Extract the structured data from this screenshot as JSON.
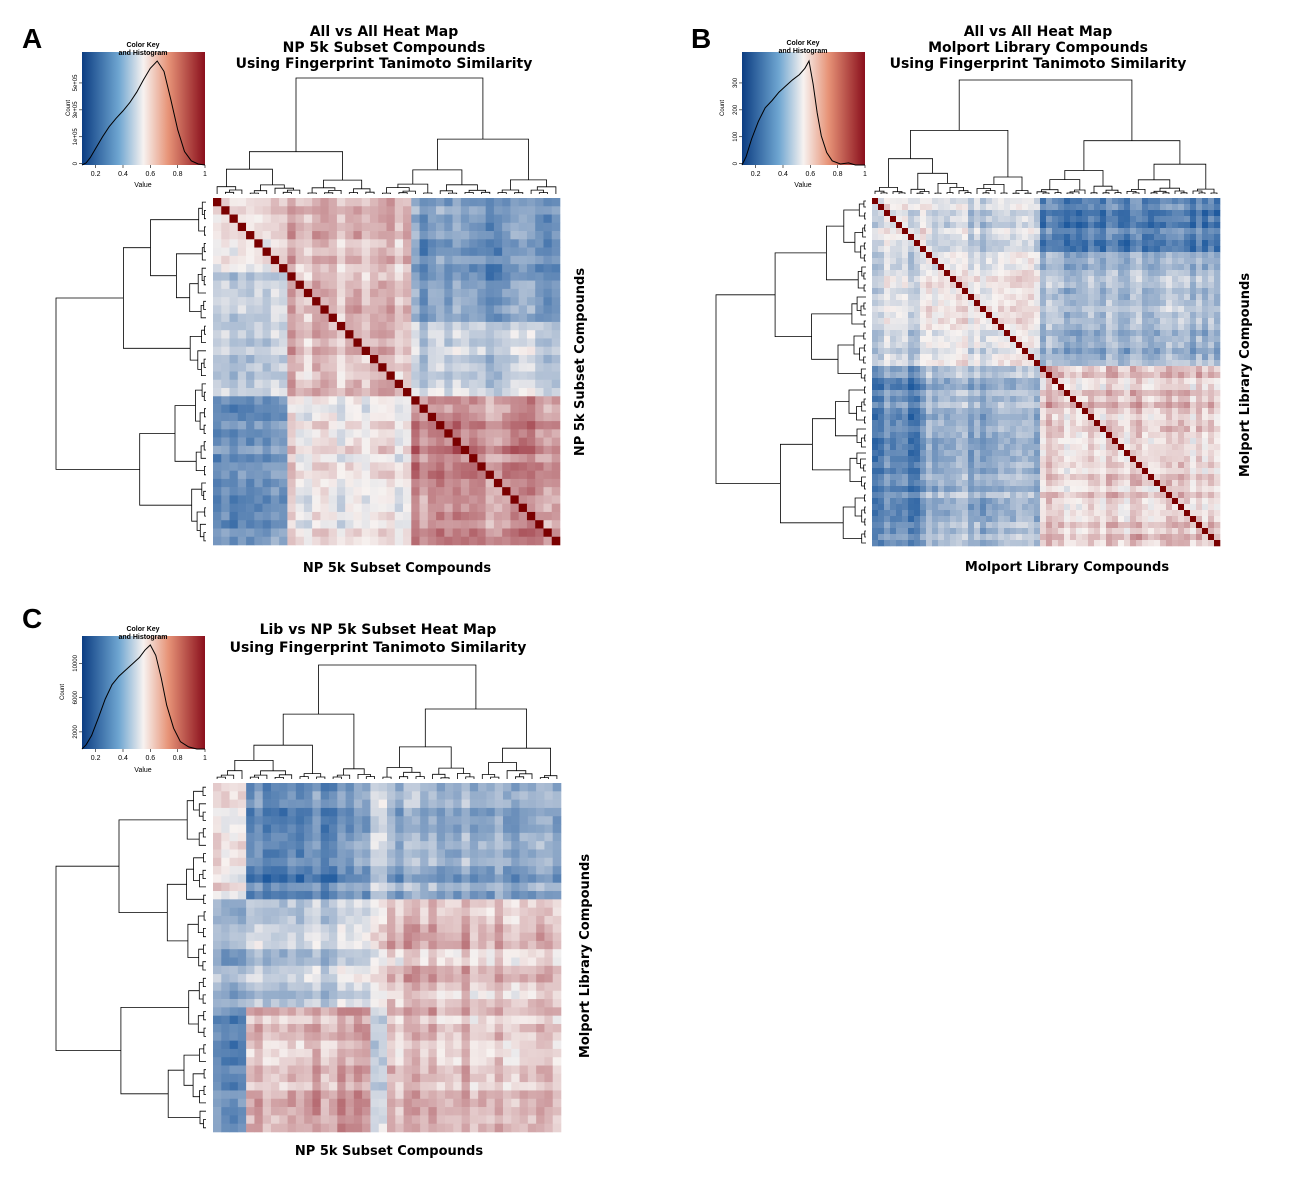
{
  "colors": {
    "low": "#1f5a9e",
    "mid": "#f7f2f0",
    "high": "#8a0f1c",
    "diagonal": "#7a0000"
  },
  "chart_data": [
    {
      "type": "heatmap",
      "panel": "A",
      "title_lines": [
        "All vs All Heat Map",
        "NP 5k Subset Compounds",
        "Using Fingerprint Tanimoto Similarity"
      ],
      "xlabel": "NP 5k Subset Compounds",
      "ylabel": "NP 5k Subset Compounds",
      "color_key": {
        "title_lines": [
          "Color Key",
          "and Histogram"
        ],
        "x_label": "Value",
        "y_label": "Count",
        "x_ticks": [
          "0.2",
          "0.4",
          "0.6",
          "0.8",
          "1"
        ],
        "y_ticks": [
          "0",
          "1e+05",
          "3e+05",
          "5e+05"
        ],
        "xlim": [
          0.1,
          1.0
        ],
        "histogram": [
          [
            0.1,
            0.0
          ],
          [
            0.13,
            0.02
          ],
          [
            0.16,
            0.07
          ],
          [
            0.2,
            0.16
          ],
          [
            0.25,
            0.27
          ],
          [
            0.3,
            0.37
          ],
          [
            0.35,
            0.45
          ],
          [
            0.4,
            0.52
          ],
          [
            0.45,
            0.6
          ],
          [
            0.5,
            0.7
          ],
          [
            0.55,
            0.82
          ],
          [
            0.6,
            0.93
          ],
          [
            0.65,
            1.0
          ],
          [
            0.7,
            0.9
          ],
          [
            0.75,
            0.63
          ],
          [
            0.8,
            0.34
          ],
          [
            0.85,
            0.13
          ],
          [
            0.9,
            0.04
          ],
          [
            0.95,
            0.01
          ],
          [
            1.0,
            0.0
          ]
        ]
      },
      "diagonal": true
    },
    {
      "type": "heatmap",
      "panel": "B",
      "title_lines": [
        "All vs All Heat Map",
        "Molport Library Compounds",
        "Using Fingerprint Tanimoto Similarity"
      ],
      "xlabel": "Molport Library Compounds",
      "ylabel": "Molport Library Compounds",
      "color_key": {
        "title_lines": [
          "Color Key",
          "and Histogram"
        ],
        "x_label": "Value",
        "y_label": "Count",
        "x_ticks": [
          "0.2",
          "0.4",
          "0.6",
          "0.8",
          "1"
        ],
        "y_ticks": [
          "0",
          "100",
          "200",
          "300"
        ],
        "xlim": [
          0.1,
          1.0
        ],
        "histogram": [
          [
            0.1,
            0.0
          ],
          [
            0.13,
            0.08
          ],
          [
            0.17,
            0.25
          ],
          [
            0.22,
            0.42
          ],
          [
            0.27,
            0.55
          ],
          [
            0.32,
            0.62
          ],
          [
            0.37,
            0.7
          ],
          [
            0.42,
            0.76
          ],
          [
            0.47,
            0.82
          ],
          [
            0.52,
            0.87
          ],
          [
            0.56,
            0.93
          ],
          [
            0.59,
            1.0
          ],
          [
            0.62,
            0.78
          ],
          [
            0.65,
            0.5
          ],
          [
            0.68,
            0.28
          ],
          [
            0.72,
            0.12
          ],
          [
            0.76,
            0.04
          ],
          [
            0.82,
            0.01
          ],
          [
            0.88,
            0.02
          ],
          [
            0.93,
            0.0
          ],
          [
            1.0,
            0.0
          ]
        ]
      },
      "diagonal": true
    },
    {
      "type": "heatmap",
      "panel": "C",
      "title_lines": [
        "Lib vs NP 5k Subset Heat Map",
        "Using Fingerprint Tanimoto Similarity"
      ],
      "xlabel": "NP 5k Subset Compounds",
      "ylabel": "Molport Library Compounds",
      "color_key": {
        "title_lines": [
          "Color Key",
          "and Histogram"
        ],
        "x_label": "Value",
        "y_label": "Count",
        "x_ticks": [
          "0.2",
          "0.4",
          "0.6",
          "0.8",
          "1"
        ],
        "y_ticks": [
          "2000",
          "6000",
          "10000"
        ],
        "xlim": [
          0.1,
          1.0
        ],
        "histogram": [
          [
            0.1,
            0.0
          ],
          [
            0.13,
            0.04
          ],
          [
            0.17,
            0.13
          ],
          [
            0.22,
            0.3
          ],
          [
            0.27,
            0.48
          ],
          [
            0.32,
            0.62
          ],
          [
            0.37,
            0.7
          ],
          [
            0.42,
            0.76
          ],
          [
            0.47,
            0.82
          ],
          [
            0.52,
            0.88
          ],
          [
            0.56,
            0.95
          ],
          [
            0.6,
            1.0
          ],
          [
            0.64,
            0.9
          ],
          [
            0.68,
            0.68
          ],
          [
            0.72,
            0.42
          ],
          [
            0.77,
            0.2
          ],
          [
            0.82,
            0.07
          ],
          [
            0.88,
            0.02
          ],
          [
            0.94,
            0.0
          ],
          [
            1.0,
            0.0
          ]
        ]
      },
      "diagonal": false
    }
  ]
}
